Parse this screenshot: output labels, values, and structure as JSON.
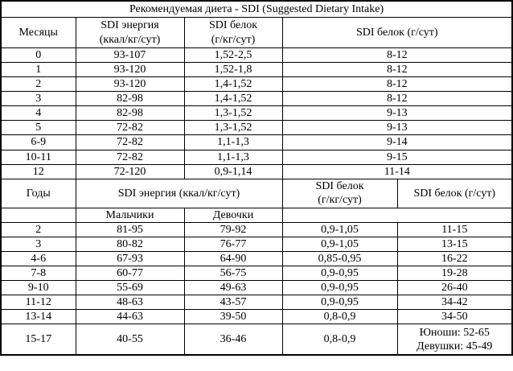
{
  "title": "Рекомендуемая диета - SDI (Suggested Dietary Intake)",
  "months": {
    "headers": {
      "age": "Месяцы",
      "energy_line1": "SDI энергия",
      "energy_line2": "(ккал/кг/сут)",
      "protein_kg_line1": "SDI белок",
      "protein_kg_line2": "(г/кг/сут)",
      "protein_day": "SDI белок (г/сут)"
    },
    "rows": [
      {
        "age": "0",
        "energy": "93-107",
        "protein_kg": "1,52-2,5",
        "protein_day": "8-12"
      },
      {
        "age": "1",
        "energy": "93-120",
        "protein_kg": "1,52-1,8",
        "protein_day": "8-12"
      },
      {
        "age": "2",
        "energy": "93-120",
        "protein_kg": "1,4-1,52",
        "protein_day": "8-12"
      },
      {
        "age": "3",
        "energy": "82-98",
        "protein_kg": "1,4-1,52",
        "protein_day": "8-12"
      },
      {
        "age": "4",
        "energy": "82-98",
        "protein_kg": "1,3-1,52",
        "protein_day": "9-13"
      },
      {
        "age": "5",
        "energy": "72-82",
        "protein_kg": "1,3-1,52",
        "protein_day": "9-13"
      },
      {
        "age": "6-9",
        "energy": "72-82",
        "protein_kg": "1,1-1,3",
        "protein_day": "9-14"
      },
      {
        "age": "10-11",
        "energy": "72-82",
        "protein_kg": "1,1-1,3",
        "protein_day": "9-15"
      },
      {
        "age": "12",
        "energy": "72-120",
        "protein_kg": "0,9-1,14",
        "protein_day": "11-14"
      }
    ]
  },
  "years": {
    "headers": {
      "age": "Годы",
      "energy": "SDI энергия (ккал/кг/сут)",
      "boys": "Мальчики",
      "girls": "Девочки",
      "protein_kg_line1": "SDI белок",
      "protein_kg_line2": "(г/кг/сут)",
      "protein_day": "SDI белок (г/сут)"
    },
    "rows": [
      {
        "age": "2",
        "boys": "81-95",
        "girls": "79-92",
        "protein_kg": "0,9-1,05",
        "protein_day": "11-15"
      },
      {
        "age": "3",
        "boys": "80-82",
        "girls": "76-77",
        "protein_kg": "0,9-1,05",
        "protein_day": "13-15"
      },
      {
        "age": "4-6",
        "boys": "67-93",
        "girls": "64-90",
        "protein_kg": "0,85-0,95",
        "protein_day": "16-22"
      },
      {
        "age": "7-8",
        "boys": "60-77",
        "girls": "56-75",
        "protein_kg": "0,9-0,95",
        "protein_day": "19-28"
      },
      {
        "age": "9-10",
        "boys": "55-69",
        "girls": "49-63",
        "protein_kg": "0,9-0,95",
        "protein_day": "26-40"
      },
      {
        "age": "11-12",
        "boys": "48-63",
        "girls": "43-57",
        "protein_kg": "0,9-0,95",
        "protein_day": "34-42"
      },
      {
        "age": "13-14",
        "boys": "44-63",
        "girls": "39-50",
        "protein_kg": "0,8-0,9",
        "protein_day": "34-50"
      },
      {
        "age": "15-17",
        "boys": "40-55",
        "girls": "36-46",
        "protein_kg": "0,8-0,9",
        "protein_day": [
          "Юноши: 52-65",
          "Девушки: 45-49"
        ]
      }
    ]
  },
  "colors": {
    "border": "#000000",
    "text": "#000000",
    "background": "#ffffff"
  }
}
